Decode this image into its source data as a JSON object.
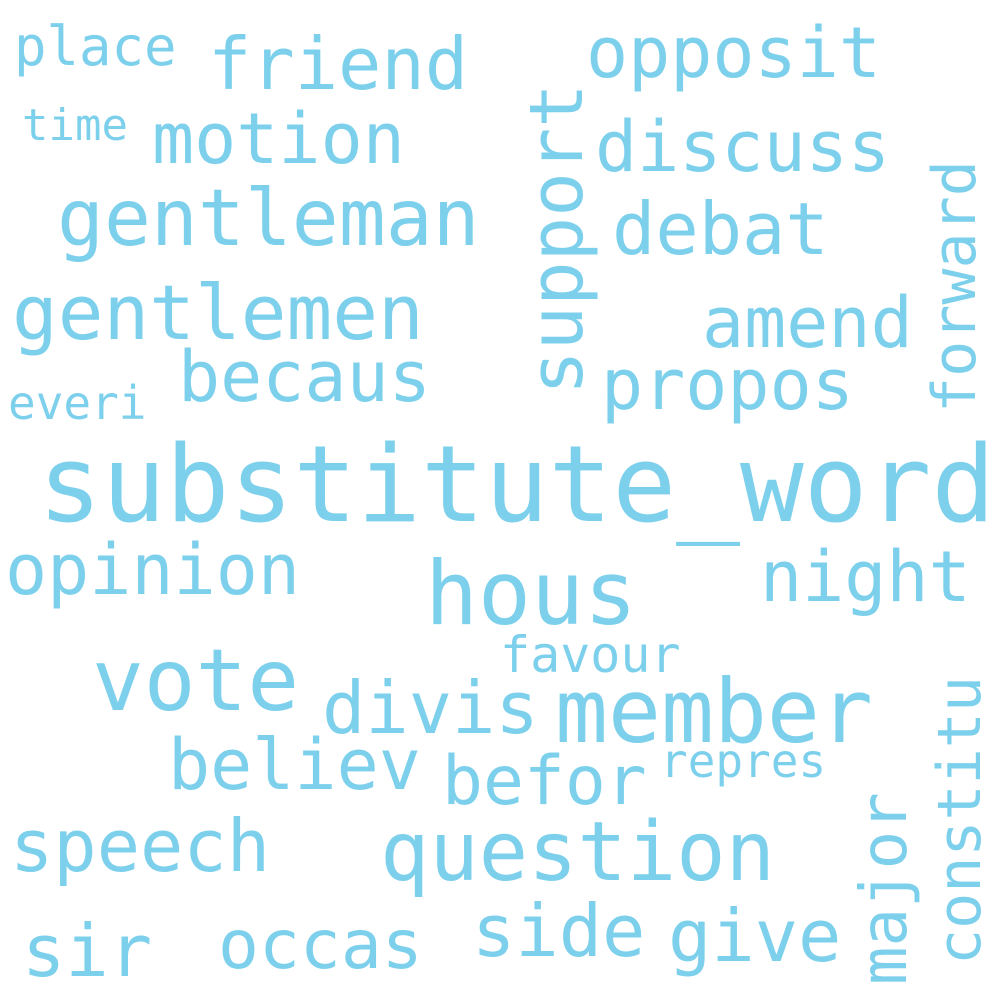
{
  "color": "#7dd0ec",
  "words": [
    {
      "id": "substitute_word",
      "text": "substitute_word"
    },
    {
      "id": "hous",
      "text": "hous"
    },
    {
      "id": "member",
      "text": "member"
    },
    {
      "id": "gentleman",
      "text": "gentleman"
    },
    {
      "id": "gentlemen",
      "text": "gentlemen"
    },
    {
      "id": "question",
      "text": "question"
    },
    {
      "id": "vote",
      "text": "vote"
    },
    {
      "id": "support",
      "text": "support"
    },
    {
      "id": "friend",
      "text": "friend"
    },
    {
      "id": "motion",
      "text": "motion"
    },
    {
      "id": "opposit",
      "text": "opposit"
    },
    {
      "id": "discuss",
      "text": "discuss"
    },
    {
      "id": "debat",
      "text": "debat"
    },
    {
      "id": "amend",
      "text": "amend"
    },
    {
      "id": "propos",
      "text": "propos"
    },
    {
      "id": "becaus",
      "text": "becaus"
    },
    {
      "id": "forward",
      "text": "forward"
    },
    {
      "id": "opinion",
      "text": "opinion"
    },
    {
      "id": "night",
      "text": "night"
    },
    {
      "id": "divis",
      "text": "divis"
    },
    {
      "id": "believ",
      "text": "believ"
    },
    {
      "id": "befor",
      "text": "befor"
    },
    {
      "id": "speech",
      "text": "speech"
    },
    {
      "id": "constitu",
      "text": "constitu"
    },
    {
      "id": "major",
      "text": "major"
    },
    {
      "id": "side",
      "text": "side"
    },
    {
      "id": "give",
      "text": "give"
    },
    {
      "id": "occas",
      "text": "occas"
    },
    {
      "id": "sir",
      "text": "sir"
    },
    {
      "id": "favour",
      "text": "favour"
    },
    {
      "id": "repres",
      "text": "repres"
    },
    {
      "id": "place",
      "text": "place"
    },
    {
      "id": "time",
      "text": "time"
    },
    {
      "id": "everi",
      "text": "everi"
    }
  ]
}
